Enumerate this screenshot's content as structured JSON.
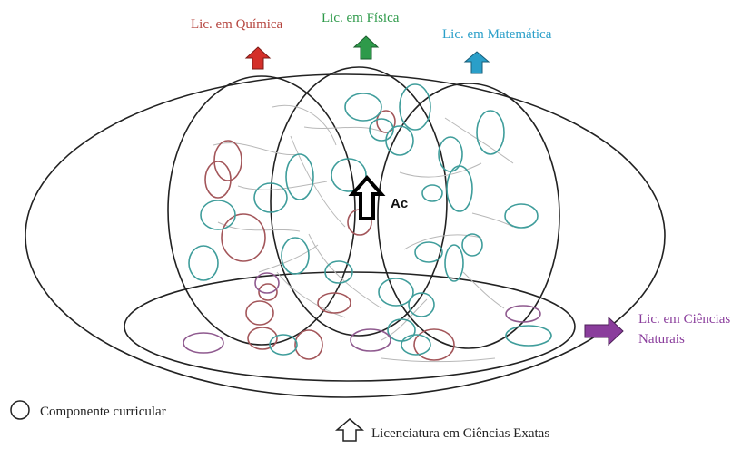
{
  "labels": {
    "quimica": "Lic. em Química",
    "fisica": "Lic. em Física",
    "matematica": "Lic. em Matemática",
    "ciencias_naturais_line1": "Lic. em Ciências",
    "ciencias_naturais_line2": "Naturais",
    "ac": "Ac",
    "legend_componente": "Componente curricular",
    "legend_licenciatura": "Licenciatura em Ciências Exatas"
  },
  "colors": {
    "quimica": "#b5443e",
    "fisica": "#2e9a4a",
    "matematica": "#2a9fc9",
    "ciencias_naturais": "#8a3d9c",
    "outline": "#222222",
    "component_red": "#a3565a",
    "component_teal": "#3f9d9b",
    "component_purple": "#8f5a8f",
    "flow_lines": "#b8b8b8"
  },
  "icons": {
    "quimica_arrow": "arrow-up-icon",
    "fisica_arrow": "arrow-up-icon",
    "matematica_arrow": "arrow-up-icon",
    "ciencias_naturais_arrow": "arrow-right-icon",
    "ac_arrow": "arrow-up-outline-icon",
    "legend_circle": "circle-outline-icon",
    "legend_arrow": "arrow-up-outline-icon"
  }
}
